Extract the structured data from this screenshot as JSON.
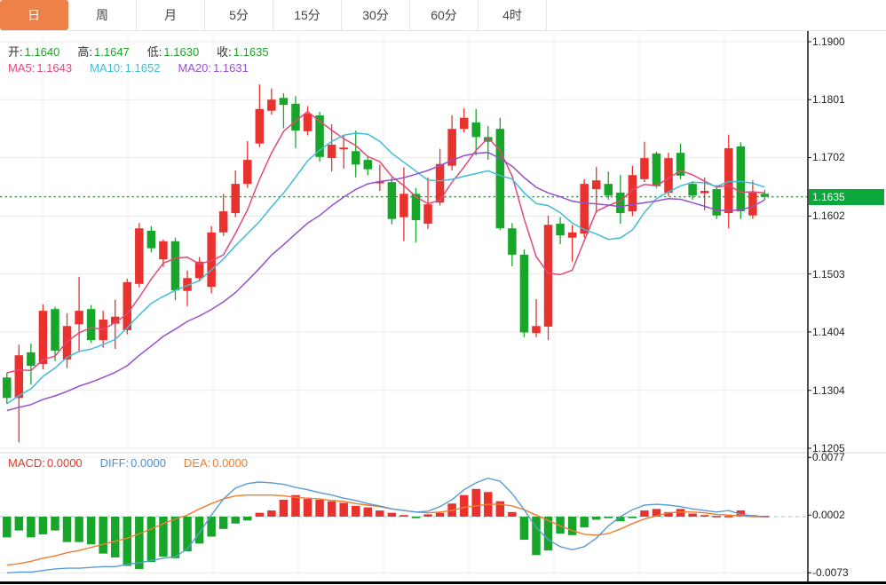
{
  "tabs": {
    "items": [
      {
        "label": "日",
        "active": true
      },
      {
        "label": "周",
        "active": false
      },
      {
        "label": "月",
        "active": false
      },
      {
        "label": "5分",
        "active": false
      },
      {
        "label": "15分",
        "active": false
      },
      {
        "label": "30分",
        "active": false
      },
      {
        "label": "60分",
        "active": false
      },
      {
        "label": "4时",
        "active": false
      }
    ]
  },
  "legend": {
    "ohlc": [
      {
        "label": "开:",
        "value": "1.1640"
      },
      {
        "label": "高:",
        "value": "1.1647"
      },
      {
        "label": "低:",
        "value": "1.1630"
      },
      {
        "label": "收:",
        "value": "1.1635"
      }
    ],
    "ohlc_value_color": "#1fa32b",
    "ma": [
      {
        "label": "MA5:",
        "value": "1.1643",
        "color": "#e4477c"
      },
      {
        "label": "MA10:",
        "value": "1.1652",
        "color": "#3fbdd4"
      },
      {
        "label": "MA20:",
        "value": "1.1631",
        "color": "#9550cc"
      }
    ]
  },
  "macd_legend": [
    {
      "label": "MACD:",
      "value": "0.0000",
      "color": "#dd3b2f"
    },
    {
      "label": "DIFF:",
      "value": "0.0000",
      "color": "#4a90d9"
    },
    {
      "label": "DEA:",
      "value": "0.0000",
      "color": "#ee7f2d"
    }
  ],
  "price_axis": {
    "tick_labels": [
      "1.1900",
      "1.1801",
      "1.1702",
      "1.1602",
      "1.1503",
      "1.1404",
      "1.1304",
      "1.1205"
    ],
    "current_label": "1.1635"
  },
  "macd_axis": {
    "tick_labels": [
      "0.0077",
      "0.0002",
      "-0.0073"
    ]
  },
  "colors": {
    "up": "#e9312e",
    "down": "#17a62a",
    "ma5": "#e4477c",
    "ma10": "#3fbdd4",
    "ma20": "#9550cc",
    "diff_line": "#5b9bd5",
    "dea_line": "#ed7d31",
    "accent_tab": "#ee8147",
    "current_line": "#2fae3e",
    "current_box": "#0ca73a",
    "grid": "#eaeaea",
    "vgrid": "#f0f0f0",
    "zero_dash": "#a8d4e8",
    "axis_line": "#111111"
  },
  "chart_data": {
    "type": "candlestick",
    "title": "",
    "xlabel": "",
    "ylabel": "",
    "legend_stats": {
      "open": 1.164,
      "high": 1.1647,
      "low": 1.163,
      "close": 1.1635,
      "ma5": 1.1643,
      "ma10": 1.1652,
      "ma20": 1.1631
    },
    "current_price": 1.1635,
    "y_ticks": [
      1.19,
      1.1801,
      1.1702,
      1.1602,
      1.1503,
      1.1404,
      1.1304,
      1.1205
    ],
    "ylim": [
      1.1205,
      1.19
    ],
    "ma_periods": [
      5,
      10,
      20
    ],
    "ohlc": [
      [
        1.1326,
        1.1334,
        1.1281,
        1.1291
      ],
      [
        1.1291,
        1.1382,
        1.1215,
        1.1364
      ],
      [
        1.1369,
        1.1384,
        1.1314,
        1.1346
      ],
      [
        1.1349,
        1.1451,
        1.134,
        1.144
      ],
      [
        1.1443,
        1.1447,
        1.1354,
        1.1372
      ],
      [
        1.1357,
        1.1436,
        1.1342,
        1.1414
      ],
      [
        1.1417,
        1.1498,
        1.1372,
        1.144
      ],
      [
        1.1443,
        1.145,
        1.1385,
        1.139
      ],
      [
        1.139,
        1.144,
        1.1377,
        1.1425
      ],
      [
        1.1418,
        1.1459,
        1.1375,
        1.143
      ],
      [
        1.1407,
        1.1495,
        1.14,
        1.1489
      ],
      [
        1.1486,
        1.159,
        1.148,
        1.1581
      ],
      [
        1.1577,
        1.1585,
        1.154,
        1.1547
      ],
      [
        1.1528,
        1.1562,
        1.1515,
        1.1559
      ],
      [
        1.1559,
        1.1565,
        1.1458,
        1.1475
      ],
      [
        1.1474,
        1.1509,
        1.1448,
        1.1496
      ],
      [
        1.1496,
        1.1532,
        1.149,
        1.1524
      ],
      [
        1.1481,
        1.1585,
        1.147,
        1.1574
      ],
      [
        1.1574,
        1.164,
        1.1568,
        1.161
      ],
      [
        1.1607,
        1.168,
        1.16,
        1.1657
      ],
      [
        1.1657,
        1.173,
        1.165,
        1.1698
      ],
      [
        1.1726,
        1.1827,
        1.172,
        1.1785
      ],
      [
        1.1782,
        1.182,
        1.1775,
        1.1801
      ],
      [
        1.1804,
        1.1812,
        1.1752,
        1.1792
      ],
      [
        1.1794,
        1.1807,
        1.1718,
        1.1748
      ],
      [
        1.1747,
        1.179,
        1.174,
        1.1777
      ],
      [
        1.1774,
        1.178,
        1.1695,
        1.1703
      ],
      [
        1.1701,
        1.1759,
        1.1678,
        1.1724
      ],
      [
        1.1716,
        1.1741,
        1.1683,
        1.1719
      ],
      [
        1.1713,
        1.1748,
        1.1668,
        1.169
      ],
      [
        1.1698,
        1.1705,
        1.1672,
        1.1682
      ],
      [
        1.1658,
        1.169,
        1.1645,
        1.1661
      ],
      [
        1.166,
        1.1668,
        1.1588,
        1.1597
      ],
      [
        1.16,
        1.1685,
        1.1559,
        1.164
      ],
      [
        1.164,
        1.165,
        1.1557,
        1.1595
      ],
      [
        1.1589,
        1.1668,
        1.158,
        1.1622
      ],
      [
        1.1625,
        1.1717,
        1.162,
        1.1691
      ],
      [
        1.1688,
        1.1774,
        1.168,
        1.1751
      ],
      [
        1.1751,
        1.1786,
        1.1745,
        1.177
      ],
      [
        1.1762,
        1.1785,
        1.1706,
        1.1737
      ],
      [
        1.1737,
        1.1756,
        1.1698,
        1.1729
      ],
      [
        1.1751,
        1.177,
        1.1578,
        1.1581
      ],
      [
        1.1581,
        1.159,
        1.1516,
        1.1536
      ],
      [
        1.1536,
        1.1545,
        1.1395,
        1.1403
      ],
      [
        1.1402,
        1.146,
        1.1395,
        1.1414
      ],
      [
        1.1413,
        1.1603,
        1.139,
        1.1587
      ],
      [
        1.1589,
        1.16,
        1.1554,
        1.1569
      ],
      [
        1.1565,
        1.1587,
        1.1524,
        1.1574
      ],
      [
        1.1572,
        1.1665,
        1.1565,
        1.1657
      ],
      [
        1.1648,
        1.1686,
        1.1607,
        1.1663
      ],
      [
        1.1657,
        1.1678,
        1.163,
        1.1637
      ],
      [
        1.1642,
        1.1672,
        1.1589,
        1.1607
      ],
      [
        1.161,
        1.1688,
        1.1602,
        1.1672
      ],
      [
        1.1665,
        1.1729,
        1.166,
        1.1701
      ],
      [
        1.1709,
        1.1712,
        1.165,
        1.1653
      ],
      [
        1.1642,
        1.171,
        1.1636,
        1.1701
      ],
      [
        1.171,
        1.1726,
        1.1665,
        1.1671
      ],
      [
        1.1657,
        1.1662,
        1.163,
        1.1637
      ],
      [
        1.1641,
        1.1668,
        1.1612,
        1.1645
      ],
      [
        1.1648,
        1.1655,
        1.1597,
        1.1603
      ],
      [
        1.1607,
        1.1741,
        1.1581,
        1.1718
      ],
      [
        1.1721,
        1.1728,
        1.1597,
        1.161
      ],
      [
        1.1603,
        1.1663,
        1.1597,
        1.1642
      ],
      [
        1.164,
        1.1647,
        1.163,
        1.1635
      ]
    ],
    "macd": {
      "y_ticks": [
        0.0077,
        0.0002,
        -0.0073
      ],
      "values_scale": 0.0001,
      "hist": [
        -27,
        -18,
        -27,
        -23,
        -18,
        -33,
        -33,
        -36,
        -48,
        -53,
        -64,
        -68,
        -59,
        -52,
        -54,
        -45,
        -35,
        -26,
        -16,
        -9,
        -5,
        5,
        8,
        22,
        28,
        23,
        22,
        20,
        18,
        14,
        12,
        8,
        5,
        2,
        -2,
        3,
        5,
        17,
        28,
        36,
        32,
        20,
        6,
        -30,
        -50,
        -44,
        -22,
        -24,
        -14,
        -4,
        -2,
        -6,
        -2,
        8,
        10,
        6,
        10,
        4,
        2,
        1,
        1,
        8,
        2,
        1
      ],
      "diff": [
        -73,
        -72,
        -72,
        -70,
        -68,
        -67,
        -67,
        -66,
        -65,
        -65,
        -62,
        -60,
        -57,
        -54,
        -52,
        -42,
        -21,
        2,
        23,
        37,
        43,
        45,
        44,
        42,
        38,
        35,
        31,
        28,
        24,
        21,
        17,
        14,
        10,
        8,
        6,
        7,
        13,
        22,
        35,
        44,
        50,
        46,
        30,
        9,
        -14,
        -30,
        -39,
        -43,
        -39,
        -28,
        -12,
        0,
        9,
        15,
        16,
        15,
        13,
        10,
        8,
        6,
        8,
        3,
        1,
        0
      ],
      "dea": [
        -63,
        -61,
        -58,
        -54,
        -51,
        -47,
        -44,
        -40,
        -36,
        -32,
        -28,
        -22,
        -16,
        -9,
        -3,
        2,
        10,
        17,
        23,
        27,
        28,
        28,
        28,
        27,
        25,
        24,
        23,
        21,
        20,
        17,
        15,
        13,
        10,
        8,
        6,
        5,
        6,
        8,
        12,
        14,
        16,
        16,
        14,
        9,
        2,
        -5,
        -12,
        -18,
        -23,
        -24,
        -22,
        -16,
        -9,
        -3,
        1,
        5,
        6,
        6,
        5,
        3,
        2,
        1,
        0,
        0
      ]
    }
  }
}
